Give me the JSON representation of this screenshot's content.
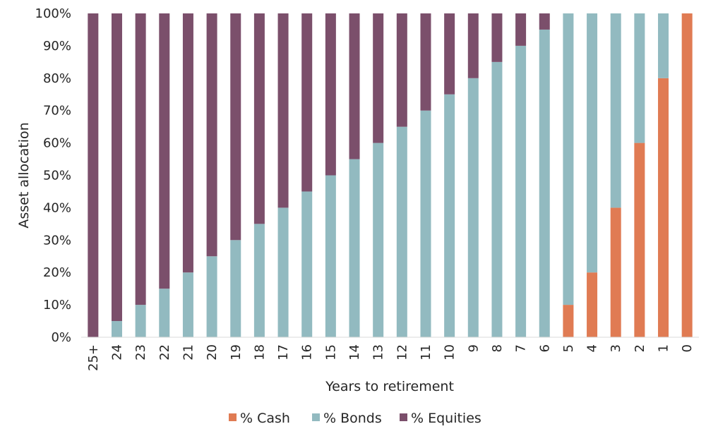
{
  "chart_data": {
    "type": "bar",
    "stacked": true,
    "xlabel": "Years to retirement",
    "ylabel": "Asset allocation",
    "ylim": [
      0,
      100
    ],
    "y_ticks": [
      "0%",
      "10%",
      "20%",
      "30%",
      "40%",
      "50%",
      "60%",
      "70%",
      "80%",
      "90%",
      "100%"
    ],
    "categories": [
      "25+",
      "24",
      "23",
      "22",
      "21",
      "20",
      "19",
      "18",
      "17",
      "16",
      "15",
      "14",
      "13",
      "12",
      "11",
      "10",
      "9",
      "8",
      "7",
      "6",
      "5",
      "4",
      "3",
      "2",
      "1",
      "0"
    ],
    "series": [
      {
        "name": "% Cash",
        "color": "#E07B53",
        "values": [
          0,
          0,
          0,
          0,
          0,
          0,
          0,
          0,
          0,
          0,
          0,
          0,
          0,
          0,
          0,
          0,
          0,
          0,
          0,
          0,
          10,
          20,
          40,
          60,
          80,
          100
        ]
      },
      {
        "name": "% Bonds",
        "color": "#92BAC0",
        "values": [
          0,
          5,
          10,
          15,
          20,
          25,
          30,
          35,
          40,
          45,
          50,
          55,
          60,
          65,
          70,
          75,
          80,
          85,
          90,
          95,
          90,
          80,
          60,
          40,
          20,
          0
        ]
      },
      {
        "name": "% Equities",
        "color": "#7B4F6B",
        "values": [
          100,
          95,
          90,
          85,
          80,
          75,
          70,
          65,
          60,
          55,
          50,
          45,
          40,
          35,
          30,
          25,
          20,
          15,
          10,
          5,
          0,
          0,
          0,
          0,
          0,
          0
        ]
      }
    ],
    "grid": false,
    "legend_position": "bottom"
  }
}
